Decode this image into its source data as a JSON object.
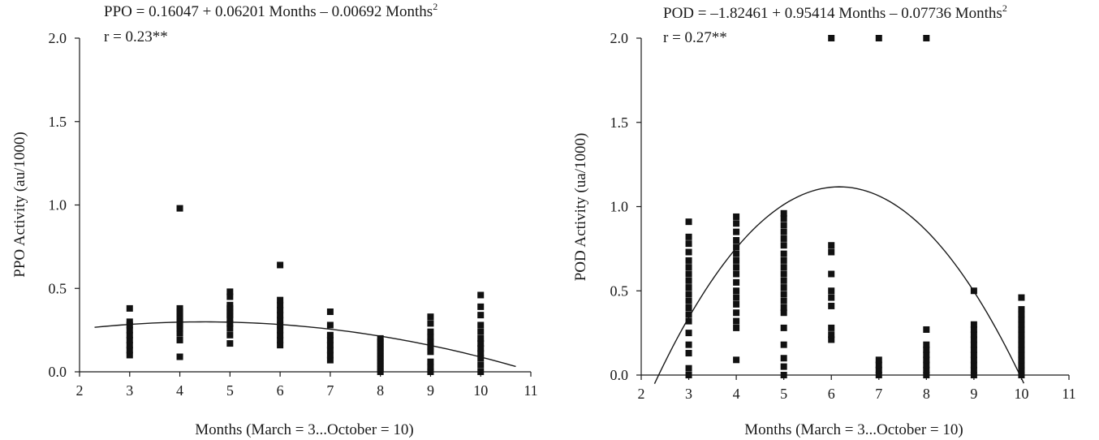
{
  "chart_data": [
    {
      "type": "scatter",
      "equation": {
        "lhs": "PPO",
        "text": " = 0.16047 + 0.06201 Months – 0.00692 Months",
        "superscript": "2",
        "coefficients": [
          0.16047,
          0.06201,
          -0.00692
        ]
      },
      "r_text": "r = 0.23**",
      "xlabel": "Months (March = 3...October = 10)",
      "ylabel": "PPO Activity (au/1000)",
      "xlim": [
        2,
        11
      ],
      "ylim": [
        0,
        2
      ],
      "xticks": [
        "2",
        "3",
        "4",
        "5",
        "6",
        "7",
        "8",
        "9",
        "10",
        "11"
      ],
      "yticks": [
        "0.0",
        "0.5",
        "1.0",
        "1.5",
        "2.0"
      ],
      "fit_range": [
        2.3,
        10.7
      ],
      "points": [
        [
          3,
          0.1
        ],
        [
          3,
          0.13
        ],
        [
          3,
          0.16
        ],
        [
          3,
          0.19
        ],
        [
          3,
          0.22
        ],
        [
          3,
          0.25
        ],
        [
          3,
          0.28
        ],
        [
          3,
          0.3
        ],
        [
          3,
          0.38
        ],
        [
          4,
          0.09
        ],
        [
          4,
          0.19
        ],
        [
          4,
          0.23
        ],
        [
          4,
          0.26
        ],
        [
          4,
          0.28
        ],
        [
          4,
          0.3
        ],
        [
          4,
          0.32
        ],
        [
          4,
          0.34
        ],
        [
          4,
          0.36
        ],
        [
          4,
          0.38
        ],
        [
          4,
          0.98
        ],
        [
          5,
          0.17
        ],
        [
          5,
          0.22
        ],
        [
          5,
          0.26
        ],
        [
          5,
          0.29
        ],
        [
          5,
          0.32
        ],
        [
          5,
          0.34
        ],
        [
          5,
          0.36
        ],
        [
          5,
          0.38
        ],
        [
          5,
          0.4
        ],
        [
          5,
          0.45
        ],
        [
          5,
          0.48
        ],
        [
          6,
          0.16
        ],
        [
          6,
          0.19
        ],
        [
          6,
          0.22
        ],
        [
          6,
          0.25
        ],
        [
          6,
          0.28
        ],
        [
          6,
          0.31
        ],
        [
          6,
          0.34
        ],
        [
          6,
          0.37
        ],
        [
          6,
          0.4
        ],
        [
          6,
          0.43
        ],
        [
          6,
          0.64
        ],
        [
          7,
          0.07
        ],
        [
          7,
          0.1
        ],
        [
          7,
          0.13
        ],
        [
          7,
          0.16
        ],
        [
          7,
          0.19
        ],
        [
          7,
          0.22
        ],
        [
          7,
          0.28
        ],
        [
          7,
          0.36
        ],
        [
          8,
          0.0
        ],
        [
          8,
          0.02
        ],
        [
          8,
          0.04
        ],
        [
          8,
          0.06
        ],
        [
          8,
          0.08
        ],
        [
          8,
          0.1
        ],
        [
          8,
          0.12
        ],
        [
          8,
          0.14
        ],
        [
          8,
          0.16
        ],
        [
          8,
          0.18
        ],
        [
          8,
          0.2
        ],
        [
          9,
          0.0
        ],
        [
          9,
          0.03
        ],
        [
          9,
          0.06
        ],
        [
          9,
          0.12
        ],
        [
          9,
          0.15
        ],
        [
          9,
          0.18
        ],
        [
          9,
          0.21
        ],
        [
          9,
          0.24
        ],
        [
          9,
          0.29
        ],
        [
          9,
          0.33
        ],
        [
          10,
          0.0
        ],
        [
          10,
          0.04
        ],
        [
          10,
          0.08
        ],
        [
          10,
          0.11
        ],
        [
          10,
          0.14
        ],
        [
          10,
          0.17
        ],
        [
          10,
          0.2
        ],
        [
          10,
          0.24
        ],
        [
          10,
          0.28
        ],
        [
          10,
          0.34
        ],
        [
          10,
          0.39
        ],
        [
          10,
          0.46
        ]
      ]
    },
    {
      "type": "scatter",
      "equation": {
        "lhs": "POD",
        "text": " = –1.82461 + 0.95414 Months – 0.07736 Months",
        "superscript": "2",
        "coefficients": [
          -1.82461,
          0.95414,
          -0.07736
        ]
      },
      "r_text": "r = 0.27**",
      "xlabel": "Months (March = 3...October = 10)",
      "ylabel": "POD Activity (ua/1000)",
      "xlim": [
        2,
        11
      ],
      "ylim": [
        0,
        2
      ],
      "xticks": [
        "2",
        "3",
        "4",
        "5",
        "6",
        "7",
        "8",
        "9",
        "10",
        "11"
      ],
      "yticks": [
        "0.0",
        "0.5",
        "1.0",
        "1.5",
        "2.0"
      ],
      "fit_range": [
        2.28,
        10.05
      ],
      "points": [
        [
          3,
          0.0
        ],
        [
          3,
          0.04
        ],
        [
          3,
          0.13
        ],
        [
          3,
          0.18
        ],
        [
          3,
          0.25
        ],
        [
          3,
          0.32
        ],
        [
          3,
          0.36
        ],
        [
          3,
          0.4
        ],
        [
          3,
          0.44
        ],
        [
          3,
          0.48
        ],
        [
          3,
          0.52
        ],
        [
          3,
          0.56
        ],
        [
          3,
          0.6
        ],
        [
          3,
          0.64
        ],
        [
          3,
          0.68
        ],
        [
          3,
          0.73
        ],
        [
          3,
          0.78
        ],
        [
          3,
          0.82
        ],
        [
          3,
          0.91
        ],
        [
          4,
          0.09
        ],
        [
          4,
          0.28
        ],
        [
          4,
          0.32
        ],
        [
          4,
          0.37
        ],
        [
          4,
          0.42
        ],
        [
          4,
          0.46
        ],
        [
          4,
          0.5
        ],
        [
          4,
          0.55
        ],
        [
          4,
          0.6
        ],
        [
          4,
          0.64
        ],
        [
          4,
          0.68
        ],
        [
          4,
          0.72
        ],
        [
          4,
          0.76
        ],
        [
          4,
          0.8
        ],
        [
          4,
          0.85
        ],
        [
          4,
          0.9
        ],
        [
          4,
          0.94
        ],
        [
          5,
          0.0
        ],
        [
          5,
          0.05
        ],
        [
          5,
          0.1
        ],
        [
          5,
          0.18
        ],
        [
          5,
          0.28
        ],
        [
          5,
          0.37
        ],
        [
          5,
          0.4
        ],
        [
          5,
          0.44
        ],
        [
          5,
          0.48
        ],
        [
          5,
          0.52
        ],
        [
          5,
          0.56
        ],
        [
          5,
          0.6
        ],
        [
          5,
          0.64
        ],
        [
          5,
          0.68
        ],
        [
          5,
          0.72
        ],
        [
          5,
          0.77
        ],
        [
          5,
          0.81
        ],
        [
          5,
          0.85
        ],
        [
          5,
          0.89
        ],
        [
          5,
          0.93
        ],
        [
          5,
          0.96
        ],
        [
          6,
          0.21
        ],
        [
          6,
          0.24
        ],
        [
          6,
          0.28
        ],
        [
          6,
          0.41
        ],
        [
          6,
          0.46
        ],
        [
          6,
          0.5
        ],
        [
          6,
          0.6
        ],
        [
          6,
          0.73
        ],
        [
          6,
          0.77
        ],
        [
          6,
          2.0
        ],
        [
          7,
          0.0
        ],
        [
          7,
          0.03
        ],
        [
          7,
          0.06
        ],
        [
          7,
          0.09
        ],
        [
          7,
          2.0
        ],
        [
          8,
          0.0
        ],
        [
          8,
          0.03
        ],
        [
          8,
          0.06
        ],
        [
          8,
          0.09
        ],
        [
          8,
          0.12
        ],
        [
          8,
          0.15
        ],
        [
          8,
          0.18
        ],
        [
          8,
          0.27
        ],
        [
          8,
          2.0
        ],
        [
          9,
          0.0
        ],
        [
          9,
          0.03
        ],
        [
          9,
          0.06
        ],
        [
          9,
          0.09
        ],
        [
          9,
          0.12
        ],
        [
          9,
          0.15
        ],
        [
          9,
          0.18
        ],
        [
          9,
          0.21
        ],
        [
          9,
          0.24
        ],
        [
          9,
          0.27
        ],
        [
          9,
          0.3
        ],
        [
          9,
          0.5
        ],
        [
          10,
          0.0
        ],
        [
          10,
          0.03
        ],
        [
          10,
          0.06
        ],
        [
          10,
          0.09
        ],
        [
          10,
          0.12
        ],
        [
          10,
          0.15
        ],
        [
          10,
          0.18
        ],
        [
          10,
          0.21
        ],
        [
          10,
          0.24
        ],
        [
          10,
          0.27
        ],
        [
          10,
          0.3
        ],
        [
          10,
          0.33
        ],
        [
          10,
          0.36
        ],
        [
          10,
          0.39
        ],
        [
          10,
          0.46
        ]
      ]
    }
  ]
}
